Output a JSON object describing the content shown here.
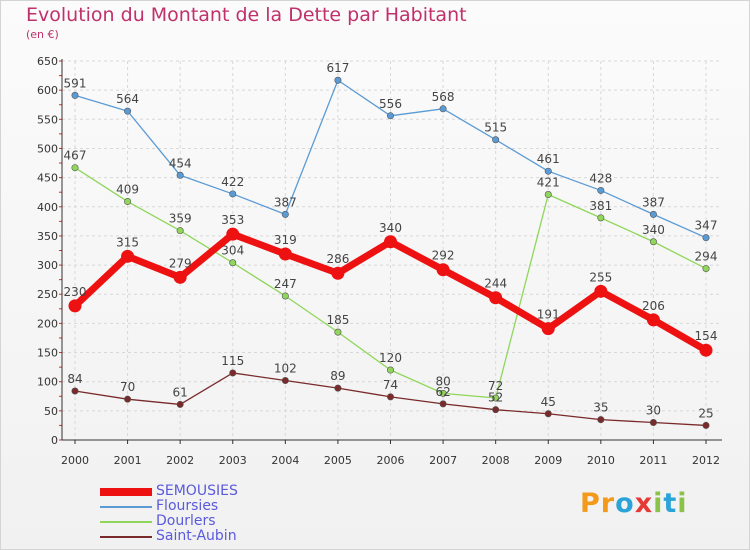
{
  "title": "Evolution du Montant de la Dette par Habitant",
  "subtitle": "(en €)",
  "logo_text": "Proxiti",
  "colors": {
    "title": "#c0306a",
    "legend_text": "#5a5adc",
    "grid": "#d8d8d8",
    "axis": "#333333"
  },
  "chart_data": {
    "type": "line",
    "title": "Evolution du Montant de la Dette par Habitant",
    "subtitle": "(en €)",
    "categories": [
      "2000",
      "2001",
      "2002",
      "2003",
      "2004",
      "2005",
      "2006",
      "2007",
      "2008",
      "2009",
      "2010",
      "2011",
      "2012"
    ],
    "ylim": [
      0,
      650
    ],
    "yticks": [
      0,
      50,
      100,
      150,
      200,
      250,
      300,
      350,
      400,
      450,
      500,
      550,
      600,
      650
    ],
    "grid": true,
    "legend_position": "bottom-left",
    "series": [
      {
        "name": "SEMOUSIES",
        "color": "#ee1111",
        "emphasis": true,
        "values": [
          230,
          315,
          279,
          353,
          319,
          286,
          340,
          292,
          244,
          191,
          255,
          206,
          154
        ]
      },
      {
        "name": "Floursies",
        "color": "#5b9bd5",
        "emphasis": false,
        "values": [
          591,
          564,
          454,
          422,
          387,
          617,
          556,
          568,
          515,
          461,
          428,
          387,
          347
        ]
      },
      {
        "name": "Dourlers",
        "color": "#8fd65a",
        "emphasis": false,
        "values": [
          467,
          409,
          359,
          304,
          247,
          185,
          120,
          80,
          72,
          421,
          381,
          340,
          294
        ]
      },
      {
        "name": "Saint-Aubin",
        "color": "#7a2a2a",
        "emphasis": false,
        "values": [
          84,
          70,
          61,
          115,
          102,
          89,
          74,
          62,
          52,
          45,
          35,
          30,
          25
        ]
      }
    ]
  }
}
